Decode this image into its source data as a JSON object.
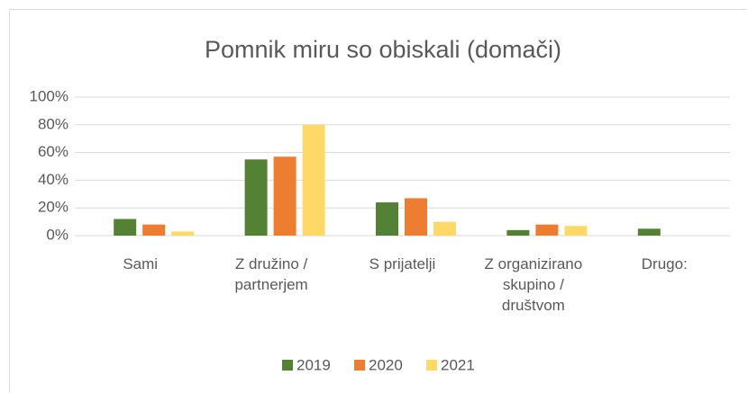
{
  "chart_data": {
    "type": "bar",
    "title": "Pomnik miru so obiskali (domači)",
    "categories": [
      "Sami",
      "Z družino / partnerjem",
      "S prijatelji",
      "Z organizirano skupino / društvom",
      "Drugo:"
    ],
    "series": [
      {
        "name": "2019",
        "color": "#548235",
        "values": [
          12,
          55,
          24,
          4,
          5
        ]
      },
      {
        "name": "2020",
        "color": "#ed7d31",
        "values": [
          8,
          57,
          27,
          8,
          0
        ]
      },
      {
        "name": "2021",
        "color": "#ffd966",
        "values": [
          3,
          80,
          10,
          7,
          0
        ]
      }
    ],
    "ylim": [
      0,
      100
    ],
    "yticks": [
      {
        "value": 0,
        "label": "0%"
      },
      {
        "value": 20,
        "label": "20%"
      },
      {
        "value": 40,
        "label": "40%"
      },
      {
        "value": 60,
        "label": "60%"
      },
      {
        "value": 80,
        "label": "80%"
      },
      {
        "value": 100,
        "label": "100%"
      }
    ],
    "grid": true,
    "legend": "bottom"
  }
}
